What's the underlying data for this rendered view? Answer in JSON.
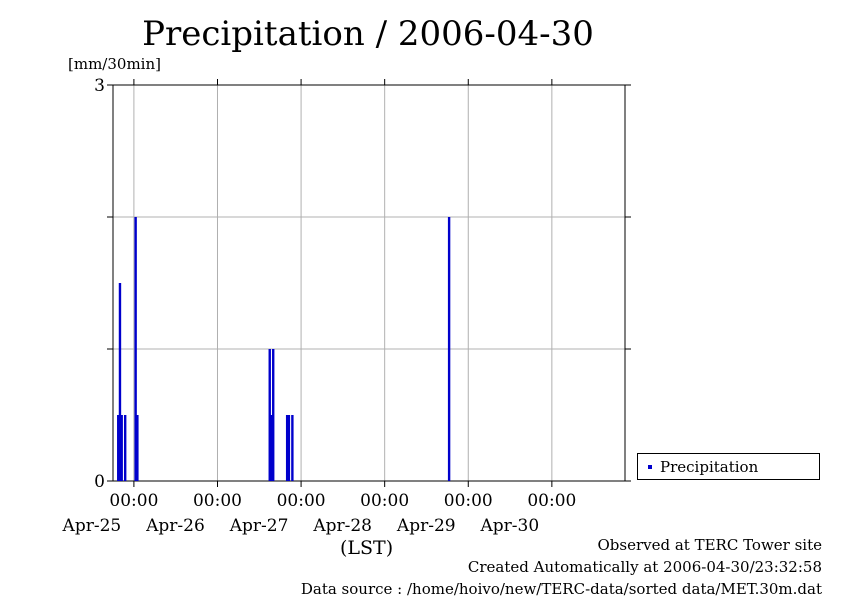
{
  "chart_data": {
    "type": "bar",
    "title": "Precipitation / 2006-04-30",
    "ylabel": "[mm/30min]",
    "xlabel": "(LST)",
    "ylim": [
      0,
      3
    ],
    "xlim": [
      "2006-04-24T18:00",
      "2006-04-30T21:00"
    ],
    "y_ticks": [
      "0",
      "3"
    ],
    "x_ticks": [
      {
        "time": "2006-04-25T00:00",
        "label": "00:00",
        "date": "Apr-25"
      },
      {
        "time": "2006-04-26T00:00",
        "label": "00:00",
        "date": "Apr-26"
      },
      {
        "time": "2006-04-27T00:00",
        "label": "00:00",
        "date": "Apr-27"
      },
      {
        "time": "2006-04-28T00:00",
        "label": "00:00",
        "date": "Apr-28"
      },
      {
        "time": "2006-04-29T00:00",
        "label": "00:00",
        "date": "Apr-29"
      },
      {
        "time": "2006-04-30T00:00",
        "label": "00:00",
        "date": "Apr-30"
      }
    ],
    "grid": true,
    "legend_position": "right",
    "series": [
      {
        "name": "Precipitation",
        "color": "#0000cc",
        "points": [
          {
            "time": "2006-04-24T19:30",
            "value": 0.5
          },
          {
            "time": "2006-04-24T20:00",
            "value": 1.5
          },
          {
            "time": "2006-04-24T20:30",
            "value": 0.5
          },
          {
            "time": "2006-04-24T21:30",
            "value": 0.5
          },
          {
            "time": "2006-04-25T00:30",
            "value": 2.0
          },
          {
            "time": "2006-04-25T01:00",
            "value": 0.5
          },
          {
            "time": "2006-04-26T15:00",
            "value": 1.0
          },
          {
            "time": "2006-04-26T15:30",
            "value": 0.5
          },
          {
            "time": "2006-04-26T16:00",
            "value": 1.0
          },
          {
            "time": "2006-04-26T20:00",
            "value": 0.5
          },
          {
            "time": "2006-04-26T20:30",
            "value": 0.5
          },
          {
            "time": "2006-04-26T21:30",
            "value": 0.5
          },
          {
            "time": "2006-04-28T18:30",
            "value": 2.0
          }
        ]
      }
    ]
  },
  "footer": {
    "line1": "Observed at TERC Tower site",
    "line2": "Created Automatically at 2006-04-30/23:32:58",
    "line3": "Data source : /home/hoivo/new/TERC-data/sorted  data/MET.30m.dat"
  }
}
